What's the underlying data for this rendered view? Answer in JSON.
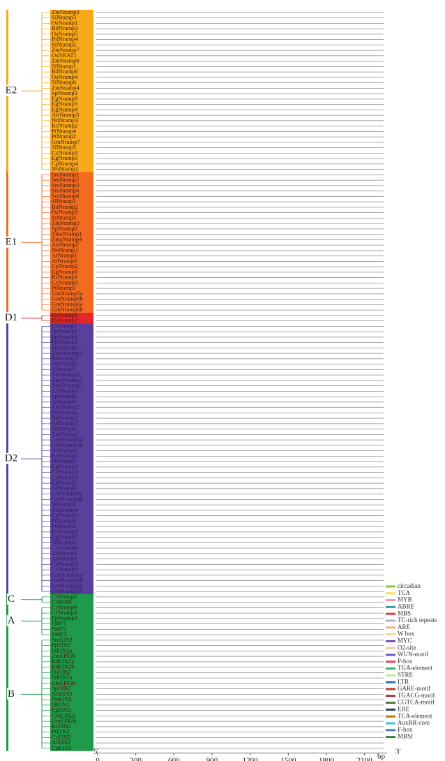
{
  "chart_data": {
    "type": "motif",
    "clades": [
      {
        "label": "E2",
        "color": "#f7a81b",
        "genes": [
          "ZmNramp3",
          "SiNramp3",
          "OsNramp1",
          "BdNramp3",
          "OsNramp5",
          "BdNramp4",
          "SiNramp2",
          "ZmNramp7",
          "OsNRAT1",
          "ZmNramp6",
          "SiNramp1",
          "BdNramp6",
          "OsNramp4",
          "SiNramp6",
          "ZmNramp4",
          "SpNramp3",
          "EgNramp9",
          "EgNramp5",
          "EgNramp4",
          "AtrNramp3",
          "NnNramp3",
          "RcNramp2",
          "PtNramp4",
          "PtNramp2",
          "GmNramp7",
          "SlNramp3",
          "CcNramp3",
          "EgNramp3",
          "CpNramp4",
          "NnNramp2"
        ]
      },
      {
        "label": "E1",
        "color": "#f26b21",
        "genes": [
          "SmNramp1",
          "SmNramp2",
          "SmNramp3",
          "SmNramp4",
          "SmNramp6",
          "SlNramp1",
          "BdNramp2",
          "OsNramp3",
          "SiNramp5",
          "ZmNramp5",
          "SpNramp2",
          "ZmaNramp1",
          "ZmaNramp4",
          "AtrNramp2",
          "NnNramp1",
          "AtNramp1",
          "AtNramp6",
          "CpNramp2",
          "EgNramp8",
          "RcNramp1",
          "CcNramp3",
          "PtNramp1",
          "GmNramp5a",
          "GmNramp5b",
          "GmNramp6a",
          "GmNramp6b"
        ]
      },
      {
        "label": "D1",
        "color": "#e5262b",
        "genes": [
          "HsNramp1",
          "HsNramp2"
        ]
      },
      {
        "label": "D2",
        "color": "#5a3f9c",
        "genes": [
          "CrNramp1",
          "PpNramp1",
          "PpNramp4",
          "PpNramp2",
          "SmNramp5",
          "ZmaNramp3",
          "BdNramp5",
          "OsNramp2",
          "SiNramp7",
          "ZmNramp8",
          "ZmaNramp2",
          "ZmaNramp5",
          "AtrNramp1",
          "SpNramp1",
          "SiNramp8",
          "ZmNramp2",
          "OsNramp6",
          "BdNramp1",
          "BdNramp7",
          "SiNramp4",
          "ZmNramp1",
          "GmNramp3a",
          "GmNramp3b",
          "AtNramp2",
          "RcNramp4",
          "PtNramp3",
          "EgNramp1",
          "CcNramp2",
          "CpNramp3",
          "EgNramp2",
          "AtNramp5",
          "GmNramp4a",
          "GmNramp4b",
          "SlNramp2",
          "NnNramp4",
          "EgNramp6",
          "PtNramp5",
          "PtNramp6",
          "RcNramp3",
          "EgNramp7",
          "SlNramp4",
          "CcNramp4",
          "AtNramp3",
          "AtNramp4",
          "CpNramp1",
          "CcNramp1",
          "GmNramp1a",
          "GmNramp1b",
          "GmNramp2a",
          "GmNramp2b"
        ]
      },
      {
        "label": "C",
        "color": "#1e9a4a",
        "genes": [
          "CrNramp2",
          "CrMntH"
        ]
      },
      {
        "label": "A",
        "color": "#1e9a4a",
        "genes": [
          "CrNramp4",
          "CrNramp3",
          "PpNramp3",
          "SMF1",
          "SMF2",
          "SMF3"
        ]
      },
      {
        "label": "B",
        "color": "#1e9a4a",
        "genes": [
          "SmEIN2",
          "PpEIN2",
          "SiEIN2a",
          "ZmEIN2b",
          "BdEIN2a",
          "BdEIN2b",
          "OsEIN2",
          "SiEIN2a",
          "ZmEIN2a",
          "SpEIN2",
          "AtrEIN2",
          "NnEIN2",
          "SlEIN2",
          "EgEIN2",
          "GmEIN2a",
          "GmEIN2b",
          "RcEIN2",
          "PtEIN2",
          "CcEIN2",
          "AtEIN2",
          "CpEIN2"
        ]
      }
    ],
    "legend": [
      {
        "name": "circadian",
        "color": "#8cc63f"
      },
      {
        "name": "TCA",
        "color": "#f4e04d"
      },
      {
        "name": "MYB",
        "color": "#e8a0b0"
      },
      {
        "name": "ABRE",
        "color": "#2aa39a"
      },
      {
        "name": "MBS",
        "color": "#e03c3c"
      },
      {
        "name": "TC-rich repeats",
        "color": "#b0b0d8"
      },
      {
        "name": "ARE",
        "color": "#f0b27a"
      },
      {
        "name": "W box",
        "color": "#f6d98a"
      },
      {
        "name": "MYC",
        "color": "#7a4fa0"
      },
      {
        "name": "O2-site",
        "color": "#f7c6a0"
      },
      {
        "name": "WUN-motif",
        "color": "#6a5acd"
      },
      {
        "name": "P-box",
        "color": "#e04848"
      },
      {
        "name": "TGA-element",
        "color": "#3cb371"
      },
      {
        "name": "STRE",
        "color": "#c9e3a0"
      },
      {
        "name": "LTR",
        "color": "#2f6db5"
      },
      {
        "name": "GARE-motif",
        "color": "#c0392b"
      },
      {
        "name": "TGACG-motif",
        "color": "#8b3a3a"
      },
      {
        "name": "CGTCA-motif",
        "color": "#4a7a3a"
      },
      {
        "name": "ERE",
        "color": "#2c3e70"
      },
      {
        "name": "TCA-element",
        "color": "#b9770e"
      },
      {
        "name": "AuxRR-core",
        "color": "#3fc1e0"
      },
      {
        "name": "F-box",
        "color": "#4f6fd0"
      },
      {
        "name": "MBSI",
        "color": "#3a7d44"
      }
    ],
    "xlim": [
      0,
      2250
    ],
    "xticks": [
      0,
      300,
      600,
      900,
      1200,
      1500,
      1800,
      2100
    ],
    "x_unit": "bp",
    "five_prime": "5'",
    "three_prime": "3'"
  }
}
